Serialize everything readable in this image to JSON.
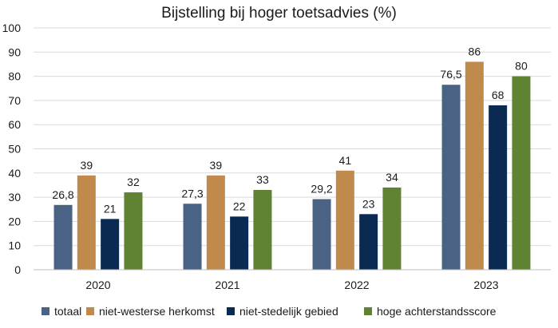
{
  "chart_data": {
    "type": "bar",
    "title": "Bijstelling bij hoger toetsadvies (%)",
    "xlabel": "",
    "ylabel": "",
    "ylim": [
      0,
      100
    ],
    "yticks": [
      0,
      10,
      20,
      30,
      40,
      50,
      60,
      70,
      80,
      90,
      100
    ],
    "grid": true,
    "legend_position": "bottom",
    "categories": [
      "2020",
      "2021",
      "2022",
      "2023"
    ],
    "series": [
      {
        "name": "totaal",
        "color": "#4a6385",
        "values": [
          26.8,
          27.3,
          29.2,
          76.5
        ],
        "labels": [
          "26,8",
          "27,3",
          "29,2",
          "76,5"
        ]
      },
      {
        "name": "niet-westerse herkomst",
        "color": "#c08a4d",
        "values": [
          39,
          39,
          41,
          86
        ],
        "labels": [
          "39",
          "39",
          "41",
          "86"
        ]
      },
      {
        "name": "niet-stedelijk gebied",
        "color": "#0b2a52",
        "values": [
          21,
          22,
          23,
          68
        ],
        "labels": [
          "21",
          "22",
          "23",
          "68"
        ]
      },
      {
        "name": "hoge achterstandsscore",
        "color": "#5f8233",
        "values": [
          32,
          33,
          34,
          80
        ],
        "labels": [
          "32",
          "33",
          "34",
          "80"
        ]
      }
    ]
  }
}
